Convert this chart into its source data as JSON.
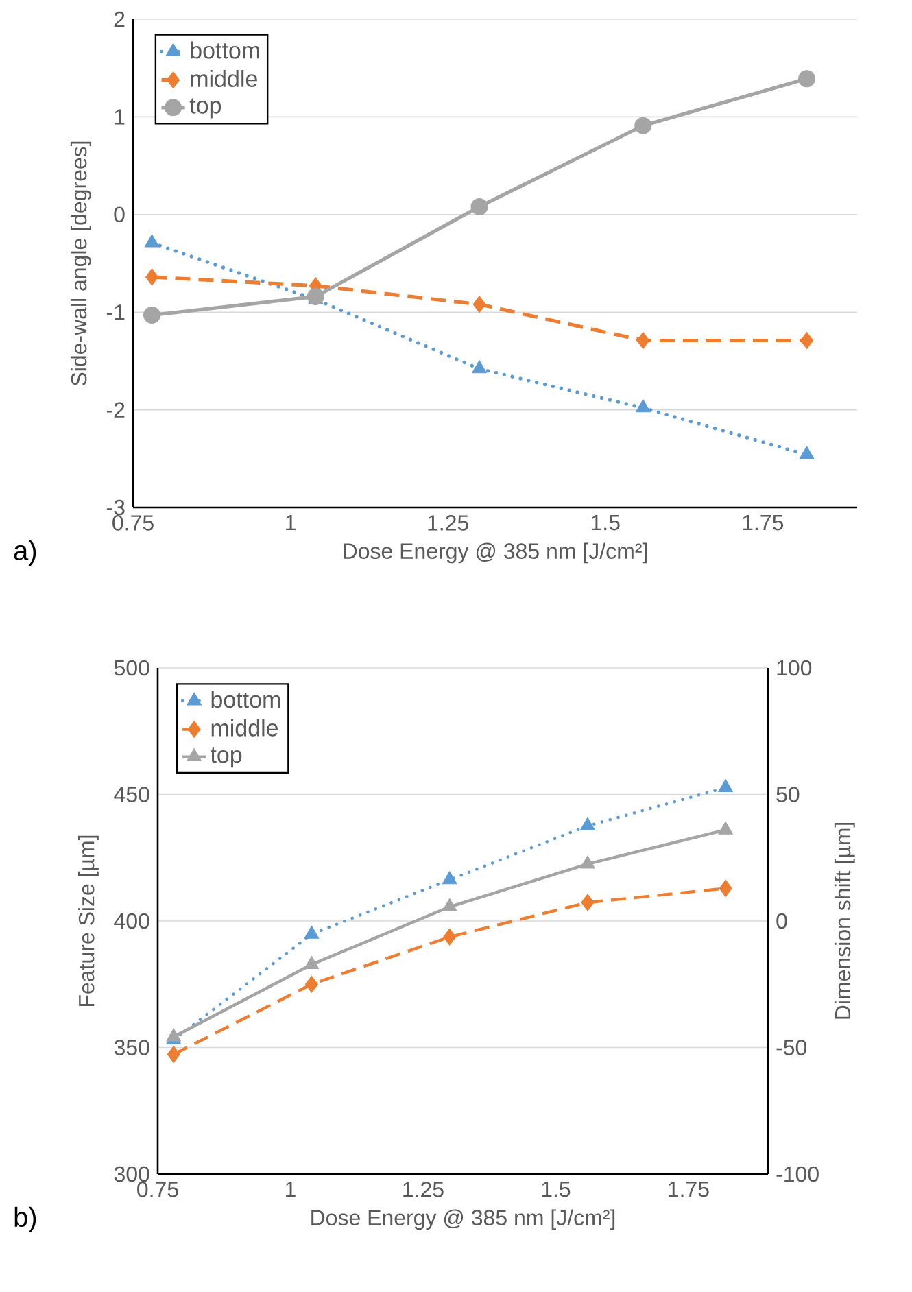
{
  "chart_data": [
    {
      "type": "line",
      "ylabel": "Side-wall angle [degrees]",
      "xlabel": "Dose Energy @ 385 nm [J/cm²]",
      "annotations": [
        "a)"
      ],
      "x": [
        0.78,
        1.04,
        1.3,
        1.56,
        1.82
      ],
      "xlim": [
        0.75,
        1.9
      ],
      "xticks": [
        0.75,
        1,
        1.25,
        1.5,
        1.75
      ],
      "ylim": [
        -3,
        2
      ],
      "yticks": [
        -3,
        -2,
        -1,
        0,
        1,
        2
      ],
      "grid": "y",
      "legend": "top left",
      "series": [
        {
          "name": "bottom",
          "color": "#5b9bd5",
          "marker": "triangle",
          "line_style": "dotted",
          "values": [
            -0.29,
            -0.87,
            -1.58,
            -1.98,
            -2.46
          ]
        },
        {
          "name": "middle",
          "color": "#ed7d31",
          "marker": "diamond",
          "line_style": "dashed",
          "values": [
            -0.64,
            -0.73,
            -0.92,
            -1.29,
            -1.29
          ]
        },
        {
          "name": "top",
          "color": "#a5a5a5",
          "marker": "circle",
          "line_style": "solid",
          "values": [
            -1.03,
            -0.84,
            0.08,
            0.91,
            1.39
          ]
        }
      ]
    },
    {
      "type": "line",
      "ylabel": "Feature Size [µm]",
      "y2label": "Dimension shift [µm]",
      "xlabel": "Dose Energy @ 385 nm [J/cm²]",
      "annotations": [
        "b)"
      ],
      "x": [
        0.78,
        1.04,
        1.3,
        1.56,
        1.82
      ],
      "xlim": [
        0.75,
        1.9
      ],
      "xticks": [
        0.75,
        1,
        1.25,
        1.5,
        1.75
      ],
      "ylim": [
        300,
        500
      ],
      "yticks": [
        300,
        350,
        400,
        450,
        500
      ],
      "y2lim": [
        -100,
        100
      ],
      "y2ticks": [
        -100,
        -50,
        0,
        50,
        100
      ],
      "grid": "y",
      "legend": "top left",
      "series": [
        {
          "name": "bottom",
          "color": "#5b9bd5",
          "marker": "triangle",
          "line_style": "dotted",
          "values": [
            353,
            394.8,
            416.3,
            437.6,
            452.7
          ]
        },
        {
          "name": "middle",
          "color": "#ed7d31",
          "marker": "diamond",
          "line_style": "dashed",
          "values": [
            347.3,
            375,
            393.7,
            407.3,
            412.9
          ]
        },
        {
          "name": "top",
          "color": "#a5a5a5",
          "marker": "triangle",
          "line_style": "solid",
          "values": [
            354.2,
            382.8,
            405.6,
            422.5,
            436
          ]
        }
      ]
    }
  ]
}
